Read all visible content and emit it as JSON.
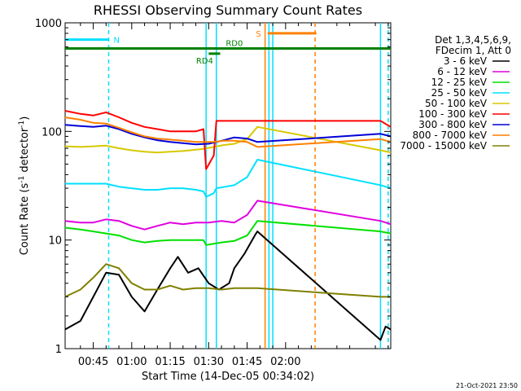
{
  "chart_data": {
    "type": "line",
    "title": "RHESSI Observing Summary Count Rates",
    "xlabel": "Start Time (14-Dec-05 00:34:02)",
    "ylabel_main": "Count Rate (s",
    "ylabel_sup1": "-1",
    "ylabel_mid": " detector",
    "ylabel_sup2": "-1",
    "ylabel_end": ")",
    "xlim_min": [
      34.03,
      161.0
    ],
    "y_scale": "log",
    "ylim": [
      1,
      1000
    ],
    "x_ticks": [
      {
        "min": 45,
        "label": "00:45"
      },
      {
        "min": 60,
        "label": "01:00"
      },
      {
        "min": 75,
        "label": "01:15"
      },
      {
        "min": 90,
        "label": "01:30"
      },
      {
        "min": 105,
        "label": "01:45"
      },
      {
        "min": 120,
        "label": "02:00"
      }
    ],
    "y_ticks": [
      {
        "value": 1,
        "label": "1"
      },
      {
        "value": 10,
        "label": "10"
      },
      {
        "value": 100,
        "label": "100"
      },
      {
        "value": 1000,
        "label": "1000"
      }
    ],
    "legend_header": [
      "Det 1,3,4,5,6,9,",
      "FDecim 1, Att 0"
    ],
    "legend_position": "right",
    "series": [
      {
        "name": "3 - 6 keV",
        "color": "#000000",
        "x": [
          34,
          40,
          45,
          50,
          55,
          60,
          65,
          70,
          75,
          78,
          82,
          86,
          90,
          94,
          98,
          100,
          104,
          108,
          109,
          157,
          159,
          161
        ],
        "y": [
          1.5,
          1.8,
          3.0,
          5.0,
          4.8,
          3.0,
          2.2,
          3.5,
          5.5,
          7.0,
          5.0,
          5.5,
          4.0,
          3.5,
          4.0,
          5.5,
          7.5,
          11.0,
          12.0,
          1.2,
          1.6,
          1.5
        ]
      },
      {
        "name": "6 - 12 keV",
        "color": "#e000e0",
        "x": [
          34,
          40,
          45,
          50,
          55,
          60,
          65,
          70,
          75,
          80,
          85,
          90,
          95,
          100,
          105,
          109,
          157,
          161
        ],
        "y": [
          15,
          14.5,
          14.5,
          15.5,
          15,
          13.5,
          12.5,
          13.5,
          14.5,
          14,
          14.5,
          14.5,
          15,
          14.5,
          17,
          23,
          15,
          14
        ]
      },
      {
        "name": "12 - 25 keV",
        "color": "#00e000",
        "x": [
          34,
          40,
          45,
          50,
          55,
          60,
          65,
          70,
          75,
          80,
          85,
          88,
          89,
          95,
          100,
          105,
          109,
          157,
          161
        ],
        "y": [
          13,
          12.5,
          12,
          11.5,
          11,
          10,
          9.5,
          9.8,
          10,
          10,
          10,
          10,
          9.0,
          9.5,
          9.8,
          11,
          15,
          12,
          11.5
        ]
      },
      {
        "name": "25 - 50 keV",
        "color": "#00e0ff",
        "x": [
          34,
          40,
          45,
          50,
          55,
          60,
          65,
          70,
          75,
          80,
          85,
          88,
          89,
          92,
          93,
          100,
          105,
          109,
          157,
          161
        ],
        "y": [
          33,
          33,
          33,
          33,
          31,
          30,
          29,
          29,
          30,
          30,
          29,
          28,
          25,
          27,
          30,
          32,
          38,
          55,
          32,
          30
        ]
      },
      {
        "name": "50 - 100 keV",
        "color": "#d8c800",
        "x": [
          34,
          40,
          45,
          50,
          55,
          60,
          65,
          70,
          75,
          80,
          85,
          88,
          92,
          96,
          100,
          105,
          109,
          157,
          161
        ],
        "y": [
          73,
          72,
          73,
          74,
          70,
          67,
          65,
          64,
          65,
          66,
          68,
          69,
          72,
          75,
          77,
          85,
          110,
          67,
          64
        ]
      },
      {
        "name": "100 - 300 keV",
        "color": "#ff0000",
        "x": [
          34,
          40,
          45,
          50,
          55,
          60,
          65,
          70,
          75,
          80,
          85,
          88,
          89,
          92,
          93,
          100,
          105,
          109,
          157,
          161
        ],
        "y": [
          155,
          145,
          140,
          150,
          135,
          120,
          110,
          105,
          100,
          100,
          100,
          105,
          45,
          60,
          125,
          125,
          125,
          125,
          125,
          110
        ]
      },
      {
        "name": "300 - 800 keV",
        "color": "#0000d8",
        "x": [
          34,
          40,
          45,
          50,
          55,
          60,
          65,
          70,
          75,
          80,
          85,
          90,
          95,
          100,
          105,
          109,
          157,
          161
        ],
        "y": [
          115,
          112,
          110,
          113,
          105,
          95,
          88,
          83,
          80,
          78,
          76,
          77,
          82,
          88,
          86,
          80,
          95,
          90
        ]
      },
      {
        "name": "800 - 7000 keV",
        "color": "#ff8000",
        "x": [
          34,
          40,
          45,
          50,
          55,
          60,
          65,
          70,
          75,
          80,
          85,
          88,
          92,
          96,
          100,
          105,
          109,
          157,
          161
        ],
        "y": [
          135,
          128,
          120,
          118,
          108,
          98,
          90,
          86,
          84,
          82,
          80,
          80,
          80,
          82,
          82,
          80,
          72,
          85,
          80
        ]
      },
      {
        "name": "7000 - 15000 keV",
        "color": "#808000",
        "x": [
          34,
          40,
          45,
          50,
          55,
          60,
          65,
          70,
          75,
          80,
          85,
          90,
          95,
          100,
          105,
          109,
          157,
          161
        ],
        "y": [
          3.0,
          3.5,
          4.5,
          6.0,
          5.5,
          4.0,
          3.5,
          3.5,
          3.8,
          3.5,
          3.6,
          3.6,
          3.5,
          3.6,
          3.6,
          3.6,
          3.0,
          3.0
        ]
      }
    ],
    "flags": [
      {
        "label": "N",
        "color": "#00e0ff",
        "x0": 34.03,
        "x1": 51.0,
        "y": 700
      },
      {
        "label": "RD0",
        "color": "#008000",
        "x0": 34.03,
        "x1": 161.0,
        "y": 580
      },
      {
        "label": "RD4",
        "color": "#008000",
        "x0": 90.0,
        "x1": 94.5,
        "y": 520
      },
      {
        "label": "S",
        "color": "#ff8000",
        "x0": 113.0,
        "x1": 132.0,
        "y": 800
      }
    ],
    "vlines": [
      {
        "x": 51.0,
        "color": "#00e0ff",
        "style": "dashed"
      },
      {
        "x": 89.0,
        "color": "#00e0ff",
        "style": "solid"
      },
      {
        "x": 93.0,
        "color": "#00e0ff",
        "style": "solid"
      },
      {
        "x": 112.0,
        "color": "#ff8000",
        "style": "solid"
      },
      {
        "x": 113.5,
        "color": "#00e0ff",
        "style": "solid"
      },
      {
        "x": 115.0,
        "color": "#00e0ff",
        "style": "solid"
      },
      {
        "x": 131.5,
        "color": "#ff8000",
        "style": "dashed"
      },
      {
        "x": 157.0,
        "color": "#00e0ff",
        "style": "solid"
      },
      {
        "x": 160.0,
        "color": "#00e0ff",
        "style": "dashed"
      }
    ],
    "footer_date": "21-Oct-2021 23:50"
  }
}
